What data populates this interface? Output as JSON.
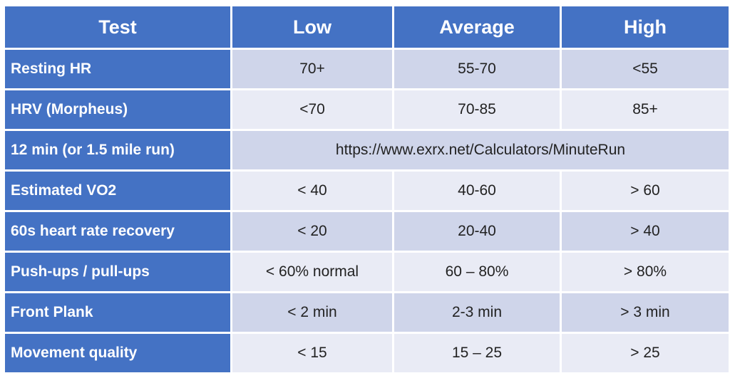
{
  "table": {
    "headers": [
      "Test",
      "Low",
      "Average",
      "High"
    ],
    "rows": [
      {
        "test": "Resting HR",
        "low": "70+",
        "average": "55-70",
        "high": "<55"
      },
      {
        "test": "HRV (Morpheus)",
        "low": "<70",
        "average": "70-85",
        "high": "85+"
      },
      {
        "test": "12 min (or 1.5 mile run)",
        "merged": "https://www.exrx.net/Calculators/MinuteRun"
      },
      {
        "test": "Estimated VO2",
        "low": "< 40",
        "average": "40-60",
        "high": "> 60"
      },
      {
        "test": "60s heart rate recovery",
        "low": "< 20",
        "average": "20-40",
        "high": "> 40"
      },
      {
        "test": "Push-ups / pull-ups",
        "low": "< 60% normal",
        "average": "60 – 80%",
        "high": "> 80%"
      },
      {
        "test": "Front Plank",
        "low": "< 2 min",
        "average": "2-3 min",
        "high": "> 3 min"
      },
      {
        "test": "Movement quality",
        "low": "< 15",
        "average": "15 – 25",
        "high": "> 25"
      }
    ]
  },
  "colors": {
    "header_bg": "#4472c4",
    "row_odd_bg": "#cfd5ea",
    "row_even_bg": "#e9ebf5",
    "text_dark": "#222222",
    "text_light": "#ffffff"
  }
}
